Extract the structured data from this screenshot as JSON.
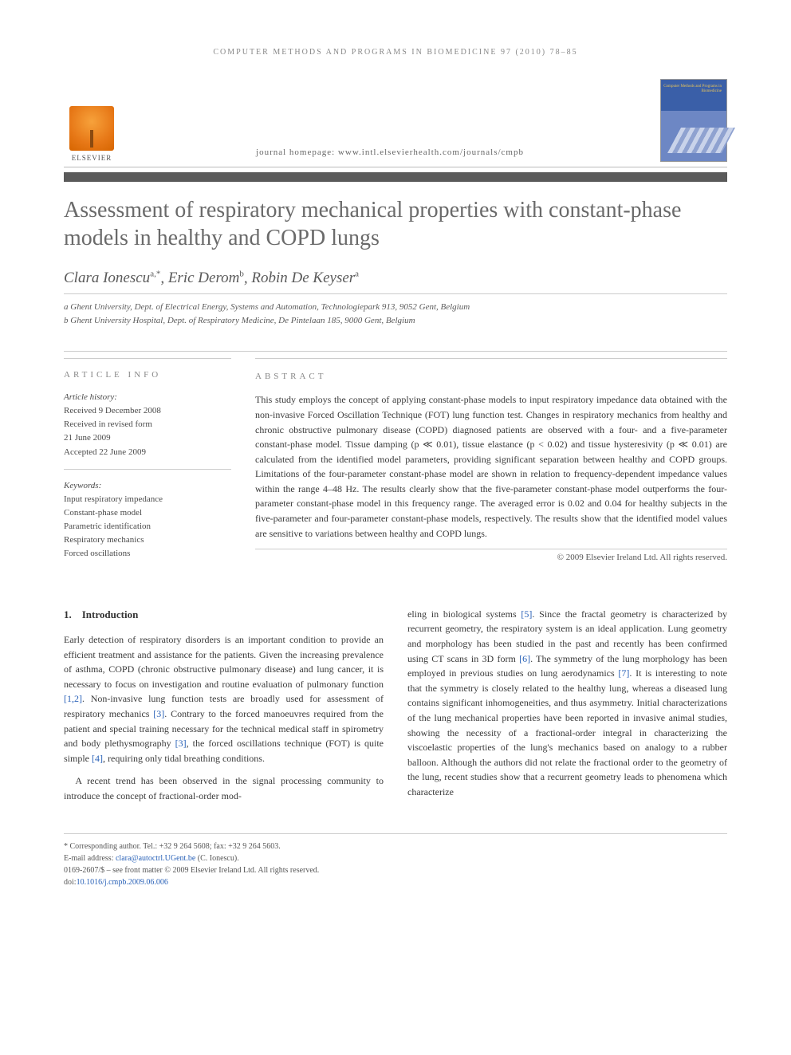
{
  "running_head": "COMPUTER METHODS AND PROGRAMS IN BIOMEDICINE 97 (2010) 78–85",
  "publisher": "ELSEVIER",
  "homepage_label": "journal homepage: www.intl.elsevierhealth.com/journals/cmpb",
  "cover_label": "Computer Methods and Programs in Biomedicine",
  "title": "Assessment of respiratory mechanical properties with constant-phase models in healthy and COPD lungs",
  "authors_html": "Clara Ionescu",
  "author_list": [
    {
      "name": "Clara Ionescu",
      "marks": "a,*"
    },
    {
      "name": "Eric Derom",
      "marks": "b"
    },
    {
      "name": "Robin De Keyser",
      "marks": "a"
    }
  ],
  "affiliations": [
    "a Ghent University, Dept. of Electrical Energy, Systems and Automation, Technologiepark 913, 9052 Gent, Belgium",
    "b Ghent University Hospital, Dept. of Respiratory Medicine, De Pintelaan 185, 9000 Gent, Belgium"
  ],
  "info_head": "ARTICLE INFO",
  "abs_head": "ABSTRACT",
  "history": {
    "label": "Article history:",
    "received": "Received 9 December 2008",
    "revised1": "Received in revised form",
    "revised2": "21 June 2009",
    "accepted": "Accepted 22 June 2009"
  },
  "keywords_label": "Keywords:",
  "keywords": [
    "Input respiratory impedance",
    "Constant-phase model",
    "Parametric identification",
    "Respiratory mechanics",
    "Forced oscillations"
  ],
  "abstract": "This study employs the concept of applying constant-phase models to input respiratory impedance data obtained with the non-invasive Forced Oscillation Technique (FOT) lung function test. Changes in respiratory mechanics from healthy and chronic obstructive pulmonary disease (COPD) diagnosed patients are observed with a four- and a five-parameter constant-phase model. Tissue damping (p ≪ 0.01), tissue elastance (p < 0.02) and tissue hysteresivity (p ≪ 0.01) are calculated from the identified model parameters, providing significant separation between healthy and COPD groups. Limitations of the four-parameter constant-phase model are shown in relation to frequency-dependent impedance values within the range 4–48 Hz. The results clearly show that the five-parameter constant-phase model outperforms the four-parameter constant-phase model in this frequency range. The averaged error is 0.02 and 0.04 for healthy subjects in the five-parameter and four-parameter constant-phase models, respectively. The results show that the identified model values are sensitive to variations between healthy and COPD lungs.",
  "copyright": "© 2009 Elsevier Ireland Ltd. All rights reserved.",
  "section_num": "1.",
  "section_title": "Introduction",
  "para1": "Early detection of respiratory disorders is an important condition to provide an efficient treatment and assistance for the patients. Given the increasing prevalence of asthma, COPD (chronic obstructive pulmonary disease) and lung cancer, it is necessary to focus on investigation and routine evaluation of pulmonary function [1,2]. Non-invasive lung function tests are broadly used for assessment of respiratory mechanics [3]. Contrary to the forced manoeuvres required from the patient and special training necessary for the technical medical staff in spirometry and body plethysmography [3], the forced oscillations technique (FOT) is quite simple [4], requiring only tidal breathing conditions.",
  "para2": "A recent trend has been observed in the signal processing community to introduce the concept of fractional-order mod-",
  "para3": "eling in biological systems [5]. Since the fractal geometry is characterized by recurrent geometry, the respiratory system is an ideal application. Lung geometry and morphology has been studied in the past and recently has been confirmed using CT scans in 3D form [6]. The symmetry of the lung morphology has been employed in previous studies on lung aerodynamics [7]. It is interesting to note that the symmetry is closely related to the healthy lung, whereas a diseased lung contains significant inhomogeneities, and thus asymmetry. Initial characterizations of the lung mechanical properties have been reported in invasive animal studies, showing the necessity of a fractional-order integral in characterizing the viscoelastic properties of the lung's mechanics based on analogy to a rubber balloon. Although the authors did not relate the fractional order to the geometry of the lung, recent studies show that a recurrent geometry leads to phenomena which characterize",
  "footnotes": {
    "corr": "* Corresponding author. Tel.: +32 9 264 5608; fax: +32 9 264 5603.",
    "email_label": "E-mail address: ",
    "email": "clara@autoctrl.UGent.be",
    "email_who": " (C. Ionescu).",
    "issn": "0169-2607/$ – see front matter © 2009 Elsevier Ireland Ltd. All rights reserved.",
    "doi_label": "doi:",
    "doi": "10.1016/j.cmpb.2009.06.006"
  },
  "colors": {
    "link": "#2a62b8",
    "rule": "#5a5a5a",
    "text": "#3a3a3a",
    "muted": "#888"
  }
}
